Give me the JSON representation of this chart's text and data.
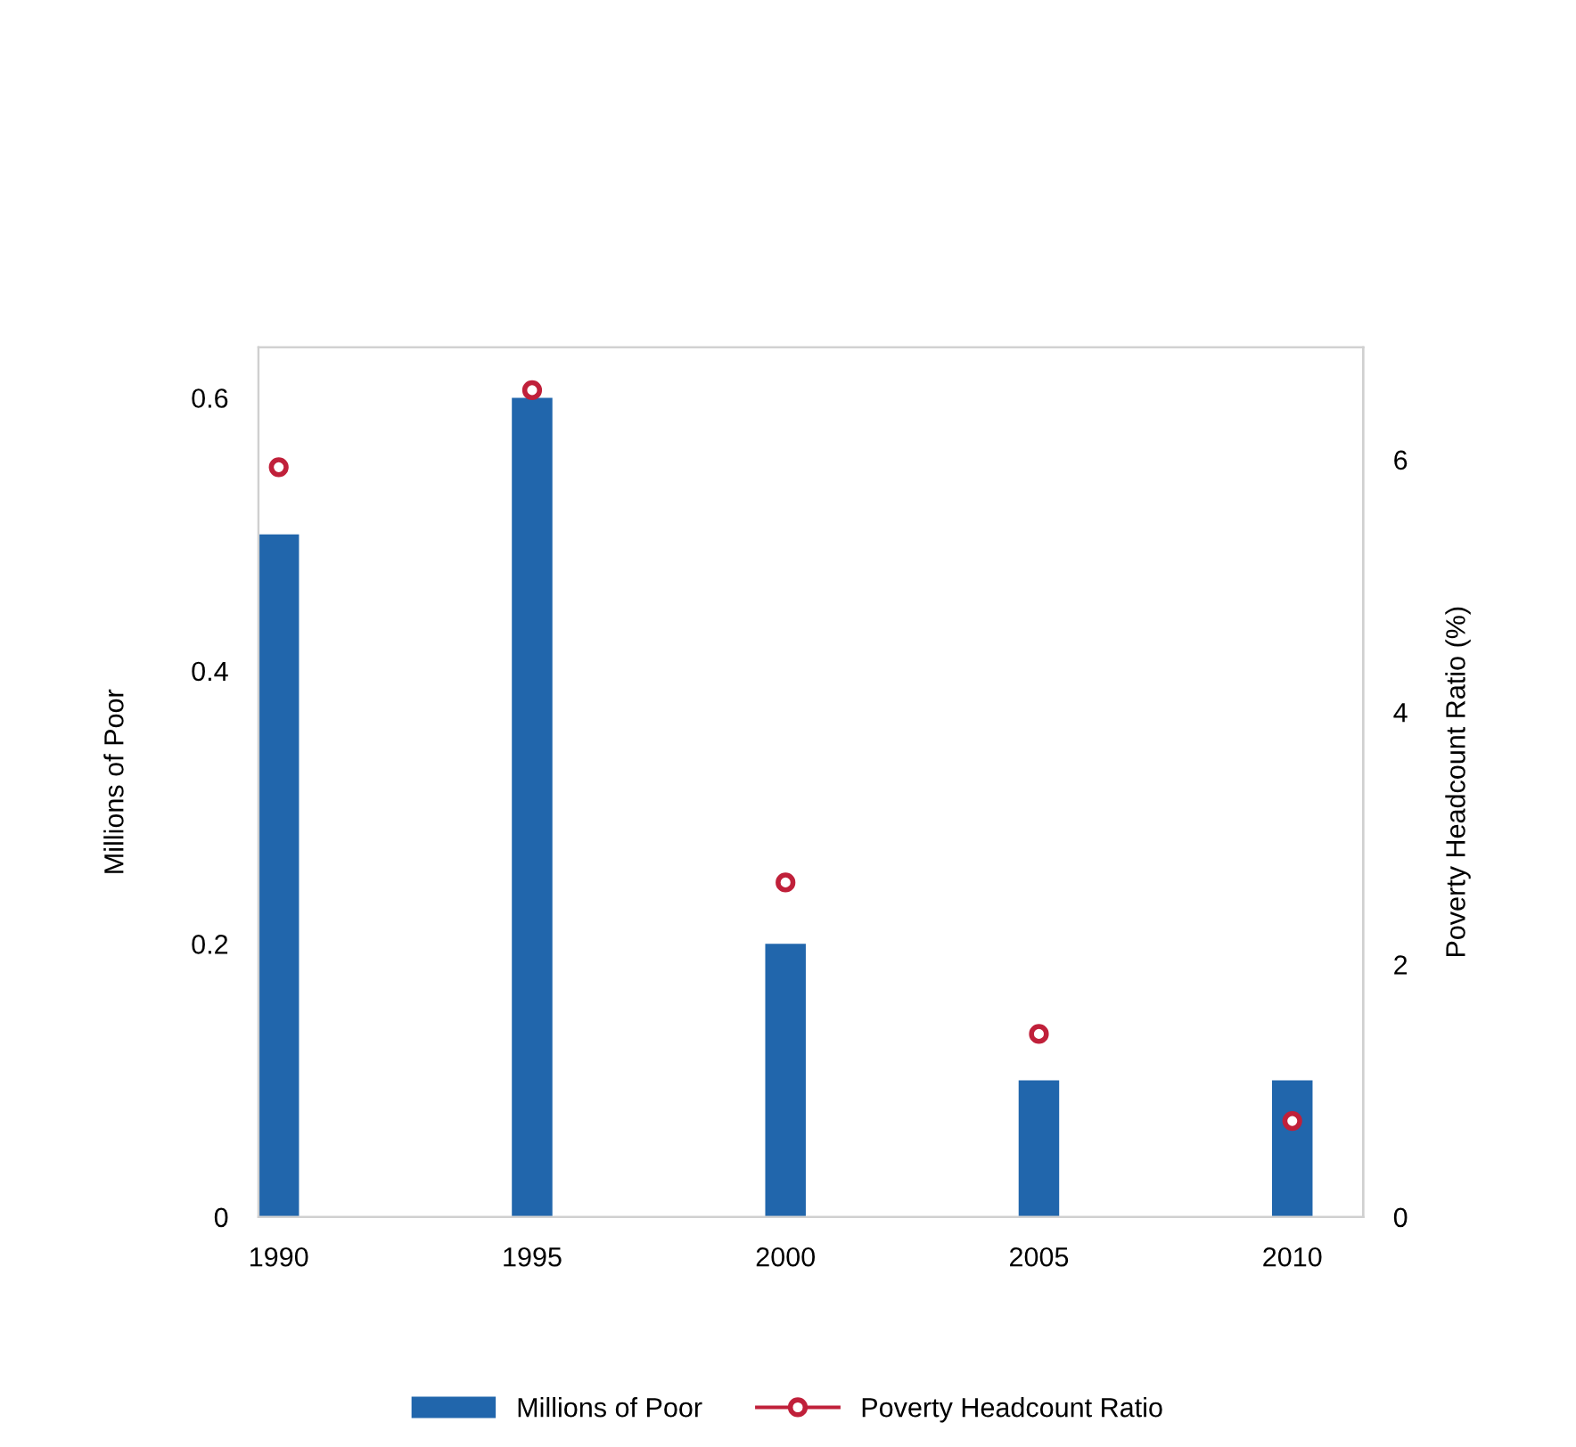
{
  "chart_data": {
    "type": "bar",
    "x": [
      1990,
      1995,
      2000,
      2005,
      2010
    ],
    "xlim": [
      1989.6,
      2011.4
    ],
    "xticks": [
      1990,
      1995,
      2000,
      2005,
      2010
    ],
    "ylabel": "Millions of Poor",
    "y2label": "Poverty Headcount Ratio (%)",
    "ylim": [
      0,
      0.637
    ],
    "yticks": [
      0,
      0.2,
      0.4,
      0.6
    ],
    "y2lim": [
      0,
      6.89
    ],
    "y2ticks": [
      0,
      2,
      4,
      6
    ],
    "series": [
      {
        "name": "Millions of Poor",
        "color": "#2166ac",
        "values": [
          0.5,
          0.6,
          0.2,
          0.1,
          0.1
        ]
      },
      {
        "name": "Poverty Headcount Ratio",
        "type": "scatter",
        "axis": "y2",
        "color": "#c0203a",
        "values": [
          5.94,
          6.55,
          2.65,
          1.45,
          0.76
        ]
      }
    ],
    "marker": "circle",
    "grid": false,
    "legend": "bottom"
  }
}
